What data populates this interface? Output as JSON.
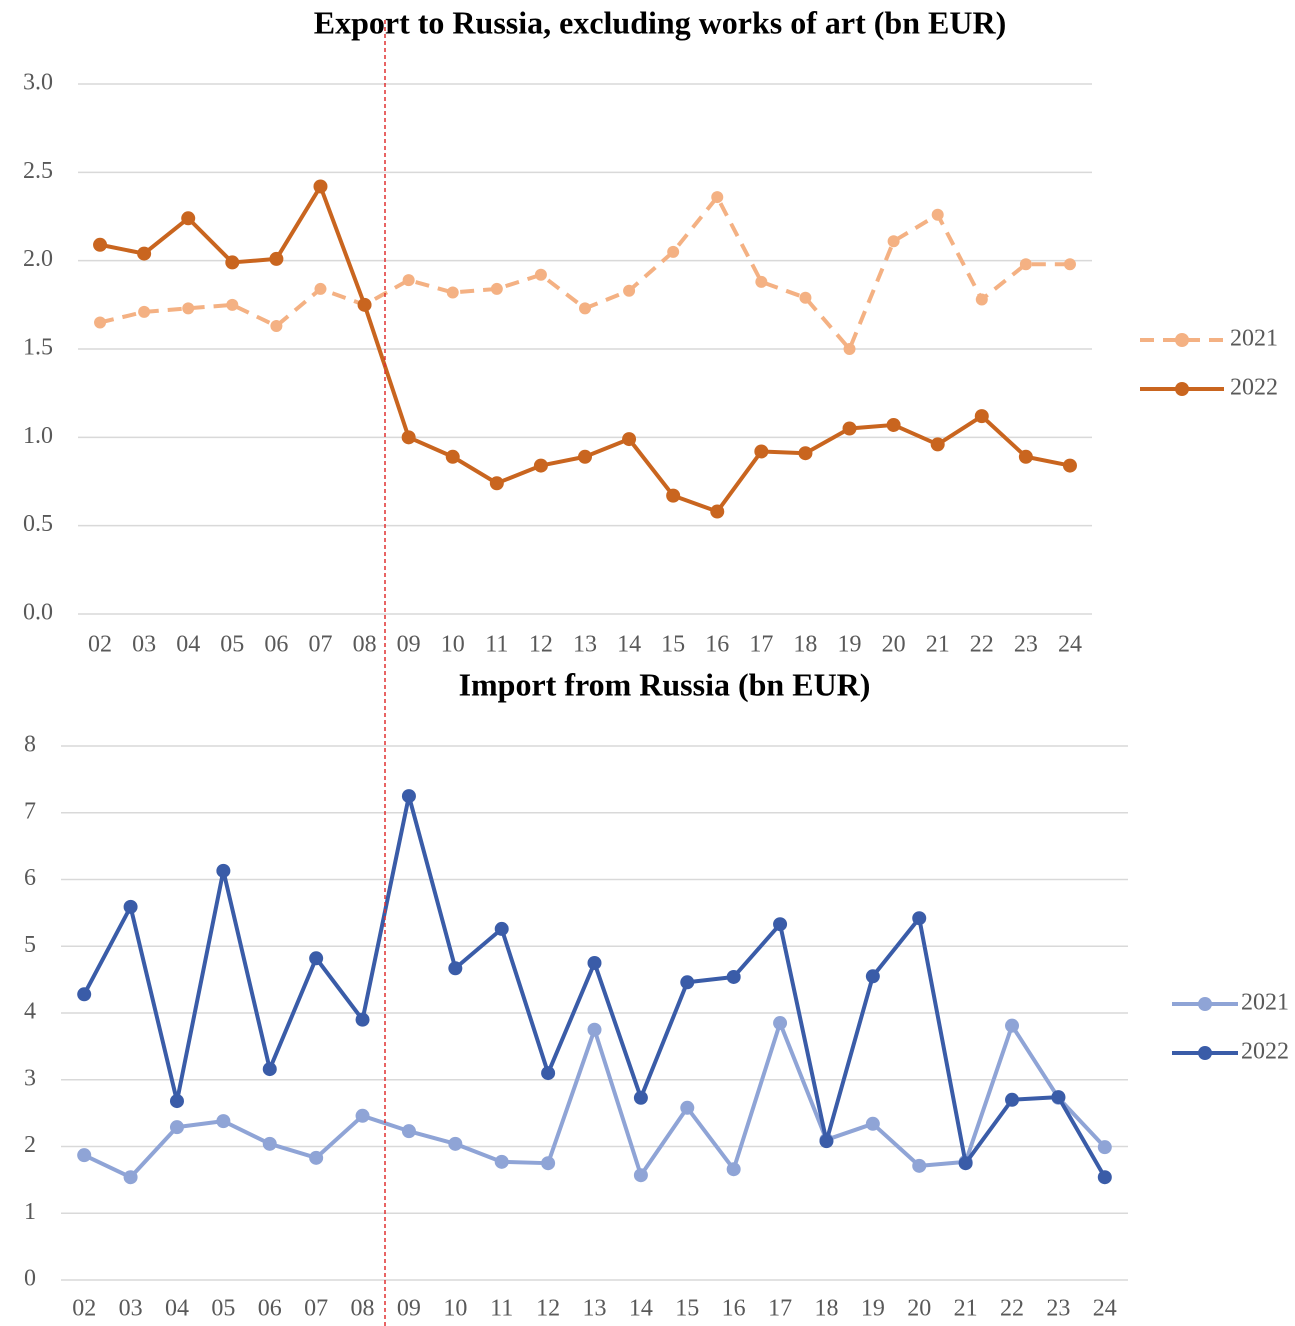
{
  "chart_data": [
    {
      "type": "line",
      "title": "Export to Russia, excluding works of art (bn EUR)",
      "categories": [
        "02",
        "03",
        "04",
        "05",
        "06",
        "07",
        "08",
        "09",
        "10",
        "11",
        "12",
        "13",
        "14",
        "15",
        "16",
        "17",
        "18",
        "19",
        "20",
        "21",
        "22",
        "23",
        "24"
      ],
      "series": [
        {
          "name": "2021",
          "color": "#f4b183",
          "dashed": true,
          "values": [
            1.65,
            1.71,
            1.73,
            1.75,
            1.63,
            1.84,
            1.75,
            1.89,
            1.82,
            1.84,
            1.92,
            1.73,
            1.83,
            2.05,
            2.36,
            1.88,
            1.79,
            1.5,
            2.11,
            2.26,
            1.78,
            1.98,
            1.98
          ]
        },
        {
          "name": "2022",
          "color": "#c9651f",
          "dashed": false,
          "values": [
            2.09,
            2.04,
            2.24,
            1.99,
            2.01,
            2.42,
            1.75,
            1.0,
            0.89,
            0.74,
            0.84,
            0.89,
            0.99,
            0.67,
            0.58,
            0.92,
            0.91,
            1.05,
            1.07,
            0.96,
            1.12,
            0.89,
            0.84
          ]
        }
      ],
      "ylim": [
        0,
        3
      ],
      "yticks": [
        {
          "value": 0,
          "label": "0.0"
        },
        {
          "value": 0.5,
          "label": "0.5"
        },
        {
          "value": 1,
          "label": "1.0"
        },
        {
          "value": 1.5,
          "label": "1.5"
        },
        {
          "value": 2,
          "label": "2.0"
        },
        {
          "value": 2.5,
          "label": "2.5"
        },
        {
          "value": 3,
          "label": "3.0"
        }
      ],
      "grid": true,
      "legend": "right"
    },
    {
      "type": "line",
      "title": "Import from Russia (bn EUR)",
      "categories": [
        "02",
        "03",
        "04",
        "05",
        "06",
        "07",
        "08",
        "09",
        "10",
        "11",
        "12",
        "13",
        "14",
        "15",
        "16",
        "17",
        "18",
        "19",
        "20",
        "21",
        "22",
        "23",
        "24"
      ],
      "series": [
        {
          "name": "2021",
          "color": "#8fa4d6",
          "dashed": false,
          "values": [
            1.87,
            1.54,
            2.29,
            2.38,
            2.04,
            1.83,
            2.46,
            2.23,
            2.04,
            1.77,
            1.75,
            3.75,
            1.57,
            2.58,
            1.66,
            3.85,
            2.1,
            2.34,
            1.71,
            1.77,
            3.81,
            2.73,
            1.99
          ]
        },
        {
          "name": "2022",
          "color": "#3a5ca8",
          "dashed": false,
          "values": [
            4.28,
            5.59,
            2.68,
            6.13,
            3.16,
            4.82,
            3.9,
            7.25,
            4.67,
            5.26,
            3.1,
            4.75,
            2.73,
            4.46,
            4.54,
            5.33,
            2.08,
            4.55,
            5.42,
            1.75,
            2.7,
            2.74,
            1.54
          ]
        }
      ],
      "ylim": [
        0,
        8
      ],
      "yticks": [
        0,
        1,
        2,
        3,
        4,
        5,
        6,
        7,
        8
      ],
      "grid": true,
      "legend": "right"
    }
  ]
}
